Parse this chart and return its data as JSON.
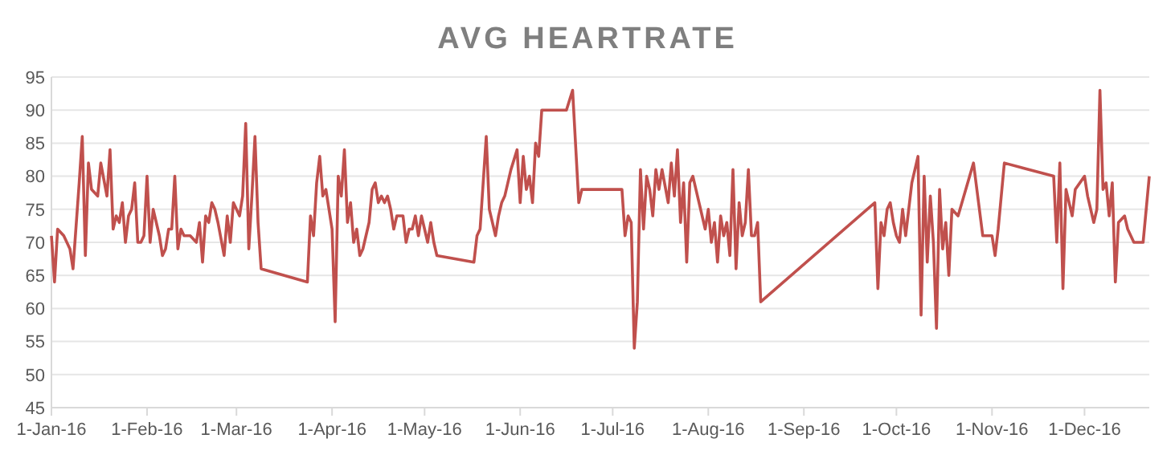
{
  "chart_data": {
    "type": "line",
    "title": "AVG HEARTRATE",
    "x": [
      "2016-01-01",
      "2016-01-02",
      "2016-01-03",
      "2016-01-05",
      "2016-01-07",
      "2016-01-08",
      "2016-01-10",
      "2016-01-11",
      "2016-01-12",
      "2016-01-13",
      "2016-01-14",
      "2016-01-16",
      "2016-01-17",
      "2016-01-19",
      "2016-01-20",
      "2016-01-21",
      "2016-01-22",
      "2016-01-23",
      "2016-01-24",
      "2016-01-25",
      "2016-01-26",
      "2016-01-27",
      "2016-01-28",
      "2016-01-29",
      "2016-01-30",
      "2016-01-31",
      "2016-02-01",
      "2016-02-02",
      "2016-02-03",
      "2016-02-04",
      "2016-02-05",
      "2016-02-06",
      "2016-02-07",
      "2016-02-08",
      "2016-02-09",
      "2016-02-10",
      "2016-02-11",
      "2016-02-12",
      "2016-02-13",
      "2016-02-15",
      "2016-02-17",
      "2016-02-18",
      "2016-02-19",
      "2016-02-20",
      "2016-02-21",
      "2016-02-22",
      "2016-02-23",
      "2016-02-24",
      "2016-02-26",
      "2016-02-27",
      "2016-02-28",
      "2016-02-29",
      "2016-03-01",
      "2016-03-02",
      "2016-03-03",
      "2016-03-04",
      "2016-03-05",
      "2016-03-06",
      "2016-03-07",
      "2016-03-08",
      "2016-03-09",
      "2016-03-24",
      "2016-03-25",
      "2016-03-26",
      "2016-03-27",
      "2016-03-28",
      "2016-03-29",
      "2016-03-30",
      "2016-03-31",
      "2016-04-01",
      "2016-04-02",
      "2016-04-03",
      "2016-04-04",
      "2016-04-05",
      "2016-04-06",
      "2016-04-07",
      "2016-04-08",
      "2016-04-09",
      "2016-04-10",
      "2016-04-11",
      "2016-04-13",
      "2016-04-14",
      "2016-04-15",
      "2016-04-16",
      "2016-04-17",
      "2016-04-18",
      "2016-04-19",
      "2016-04-20",
      "2016-04-21",
      "2016-04-22",
      "2016-04-24",
      "2016-04-25",
      "2016-04-26",
      "2016-04-27",
      "2016-04-28",
      "2016-04-29",
      "2016-04-30",
      "2016-05-01",
      "2016-05-02",
      "2016-05-03",
      "2016-05-04",
      "2016-05-05",
      "2016-05-17",
      "2016-05-18",
      "2016-05-19",
      "2016-05-21",
      "2016-05-22",
      "2016-05-24",
      "2016-05-25",
      "2016-05-26",
      "2016-05-27",
      "2016-05-29",
      "2016-05-31",
      "2016-06-01",
      "2016-06-02",
      "2016-06-03",
      "2016-06-04",
      "2016-06-05",
      "2016-06-06",
      "2016-06-07",
      "2016-06-08",
      "2016-06-16",
      "2016-06-18",
      "2016-06-20",
      "2016-06-21",
      "2016-07-04",
      "2016-07-05",
      "2016-07-06",
      "2016-07-07",
      "2016-07-08",
      "2016-07-09",
      "2016-07-10",
      "2016-07-11",
      "2016-07-12",
      "2016-07-13",
      "2016-07-14",
      "2016-07-15",
      "2016-07-16",
      "2016-07-17",
      "2016-07-19",
      "2016-07-20",
      "2016-07-21",
      "2016-07-22",
      "2016-07-23",
      "2016-07-24",
      "2016-07-25",
      "2016-07-26",
      "2016-07-27",
      "2016-07-28",
      "2016-07-29",
      "2016-07-31",
      "2016-08-01",
      "2016-08-02",
      "2016-08-03",
      "2016-08-04",
      "2016-08-05",
      "2016-08-06",
      "2016-08-07",
      "2016-08-08",
      "2016-08-09",
      "2016-08-10",
      "2016-08-11",
      "2016-08-12",
      "2016-08-13",
      "2016-08-14",
      "2016-08-15",
      "2016-08-16",
      "2016-08-17",
      "2016-08-18",
      "2016-09-24",
      "2016-09-25",
      "2016-09-26",
      "2016-09-27",
      "2016-09-28",
      "2016-09-29",
      "2016-09-30",
      "2016-10-01",
      "2016-10-02",
      "2016-10-03",
      "2016-10-04",
      "2016-10-05",
      "2016-10-06",
      "2016-10-08",
      "2016-10-09",
      "2016-10-10",
      "2016-10-11",
      "2016-10-12",
      "2016-10-13",
      "2016-10-14",
      "2016-10-15",
      "2016-10-16",
      "2016-10-17",
      "2016-10-18",
      "2016-10-19",
      "2016-10-21",
      "2016-10-26",
      "2016-10-29",
      "2016-10-30",
      "2016-11-01",
      "2016-11-02",
      "2016-11-03",
      "2016-11-05",
      "2016-11-21",
      "2016-11-22",
      "2016-11-23",
      "2016-11-24",
      "2016-11-25",
      "2016-11-26",
      "2016-11-27",
      "2016-11-28",
      "2016-12-01",
      "2016-12-02",
      "2016-12-04",
      "2016-12-05",
      "2016-12-06",
      "2016-12-07",
      "2016-12-08",
      "2016-12-09",
      "2016-12-10",
      "2016-12-11",
      "2016-12-12",
      "2016-12-14",
      "2016-12-15",
      "2016-12-17",
      "2016-12-20",
      "2016-12-22"
    ],
    "series": [
      {
        "color": "#c0504d",
        "values": [
          71,
          64,
          72,
          71,
          69,
          66,
          79,
          86,
          68,
          82,
          78,
          77,
          82,
          77,
          84,
          72,
          74,
          73,
          76,
          70,
          74,
          75,
          79,
          70,
          70,
          71,
          80,
          70,
          75,
          73,
          71,
          68,
          69,
          72,
          72,
          80,
          69,
          72,
          71,
          71,
          70,
          73,
          67,
          74,
          73,
          76,
          75,
          73,
          68,
          74,
          70,
          76,
          75,
          74,
          77,
          88,
          69,
          77,
          86,
          73,
          66,
          64,
          74,
          71,
          79,
          83,
          77,
          78,
          75,
          72,
          58,
          80,
          77,
          84,
          73,
          76,
          70,
          72,
          68,
          69,
          73,
          78,
          79,
          76,
          77,
          76,
          77,
          75,
          72,
          74,
          74,
          70,
          72,
          72,
          74,
          71,
          74,
          72,
          70,
          73,
          70,
          68,
          67,
          71,
          72,
          86,
          75,
          71,
          74,
          76,
          77,
          81,
          84,
          76,
          83,
          78,
          80,
          76,
          85,
          83,
          90,
          90,
          93,
          76,
          78,
          78,
          71,
          74,
          73,
          54,
          61,
          81,
          72,
          80,
          78,
          74,
          81,
          78,
          81,
          76,
          82,
          77,
          84,
          73,
          79,
          67,
          79,
          80,
          78,
          76,
          72,
          75,
          70,
          73,
          67,
          74,
          71,
          73,
          68,
          81,
          66,
          76,
          71,
          73,
          81,
          71,
          71,
          73,
          61,
          76,
          63,
          73,
          71,
          75,
          76,
          73,
          71,
          70,
          75,
          71,
          75,
          79,
          83,
          59,
          80,
          67,
          77,
          70,
          57,
          78,
          69,
          73,
          65,
          75,
          74,
          82,
          71,
          71,
          71,
          68,
          72,
          82,
          80,
          70,
          82,
          63,
          78,
          76,
          74,
          78,
          80,
          77,
          73,
          75,
          93,
          78,
          79,
          74,
          79,
          64,
          73,
          74,
          72,
          70,
          70,
          80
        ]
      }
    ],
    "xlim": [
      "2016-01-01",
      "2016-12-22"
    ],
    "xticks": [
      {
        "value": "2016-01-01",
        "label": "1-Jan-16"
      },
      {
        "value": "2016-02-01",
        "label": "1-Feb-16"
      },
      {
        "value": "2016-03-01",
        "label": "1-Mar-16"
      },
      {
        "value": "2016-04-01",
        "label": "1-Apr-16"
      },
      {
        "value": "2016-05-01",
        "label": "1-May-16"
      },
      {
        "value": "2016-06-01",
        "label": "1-Jun-16"
      },
      {
        "value": "2016-07-01",
        "label": "1-Jul-16"
      },
      {
        "value": "2016-08-01",
        "label": "1-Aug-16"
      },
      {
        "value": "2016-09-01",
        "label": "1-Sep-16"
      },
      {
        "value": "2016-10-01",
        "label": "1-Oct-16"
      },
      {
        "value": "2016-11-01",
        "label": "1-Nov-16"
      },
      {
        "value": "2016-12-01",
        "label": "1-Dec-16"
      }
    ],
    "ylim": [
      45,
      95
    ],
    "yticks": [
      45,
      50,
      55,
      60,
      65,
      70,
      75,
      80,
      85,
      90,
      95
    ],
    "grid": "y",
    "marker": "none",
    "line_style": "solid"
  }
}
